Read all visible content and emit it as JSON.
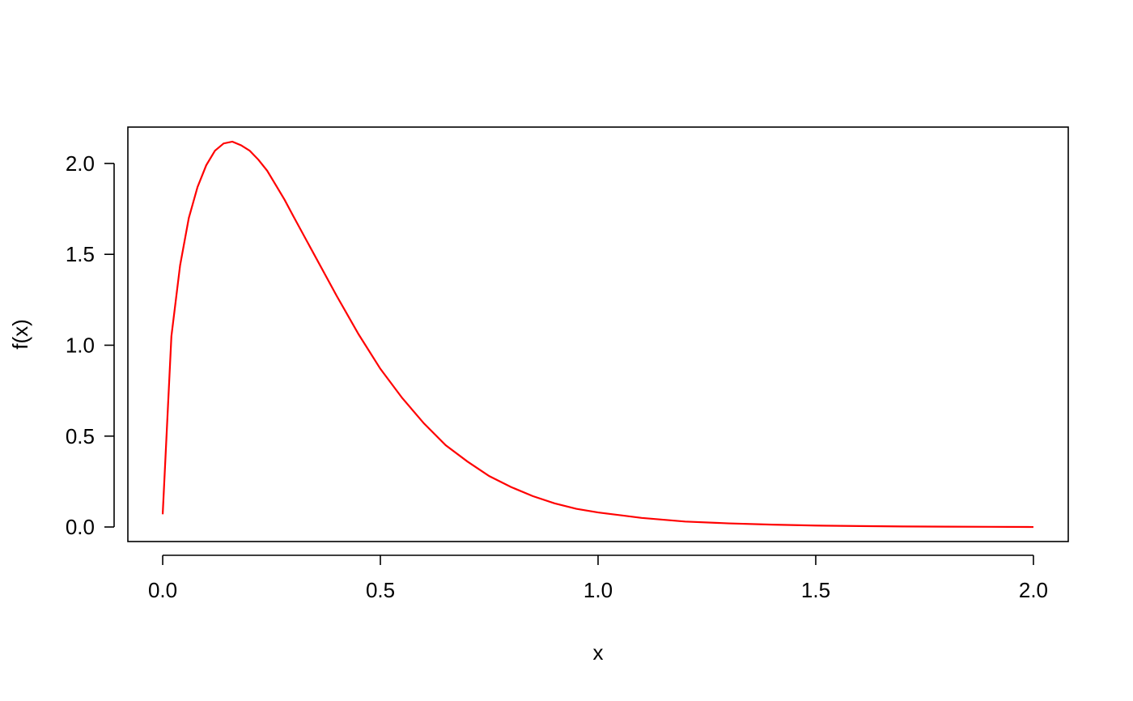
{
  "chart_data": {
    "type": "line",
    "title": "",
    "xlabel": "x",
    "ylabel": "f(x)",
    "xlim": [
      -0.08,
      2.08
    ],
    "ylim": [
      -0.08,
      2.2
    ],
    "x_ticks": [
      0.0,
      0.5,
      1.0,
      1.5,
      2.0
    ],
    "x_tick_labels": [
      "0.0",
      "0.5",
      "1.0",
      "1.5",
      "2.0"
    ],
    "y_ticks": [
      0.0,
      0.5,
      1.0,
      1.5,
      2.0
    ],
    "y_tick_labels": [
      "0.0",
      "0.5",
      "1.0",
      "1.5",
      "2.0"
    ],
    "grid": false,
    "series": [
      {
        "color": "#ff0000",
        "x": [
          0.0,
          0.02,
          0.04,
          0.06,
          0.08,
          0.1,
          0.12,
          0.14,
          0.16,
          0.18,
          0.2,
          0.22,
          0.24,
          0.26,
          0.28,
          0.3,
          0.35,
          0.4,
          0.45,
          0.5,
          0.55,
          0.6,
          0.65,
          0.7,
          0.75,
          0.8,
          0.85,
          0.9,
          0.95,
          1.0,
          1.1,
          1.2,
          1.3,
          1.4,
          1.5,
          1.6,
          1.7,
          1.8,
          1.9,
          2.0
        ],
        "y": [
          0.07,
          1.05,
          1.44,
          1.7,
          1.87,
          1.99,
          2.07,
          2.11,
          2.12,
          2.1,
          2.07,
          2.02,
          1.96,
          1.88,
          1.8,
          1.71,
          1.49,
          1.27,
          1.06,
          0.87,
          0.71,
          0.57,
          0.45,
          0.36,
          0.28,
          0.22,
          0.17,
          0.13,
          0.1,
          0.08,
          0.05,
          0.03,
          0.02,
          0.013,
          0.008,
          0.005,
          0.003,
          0.002,
          0.001,
          0.0
        ]
      }
    ]
  }
}
